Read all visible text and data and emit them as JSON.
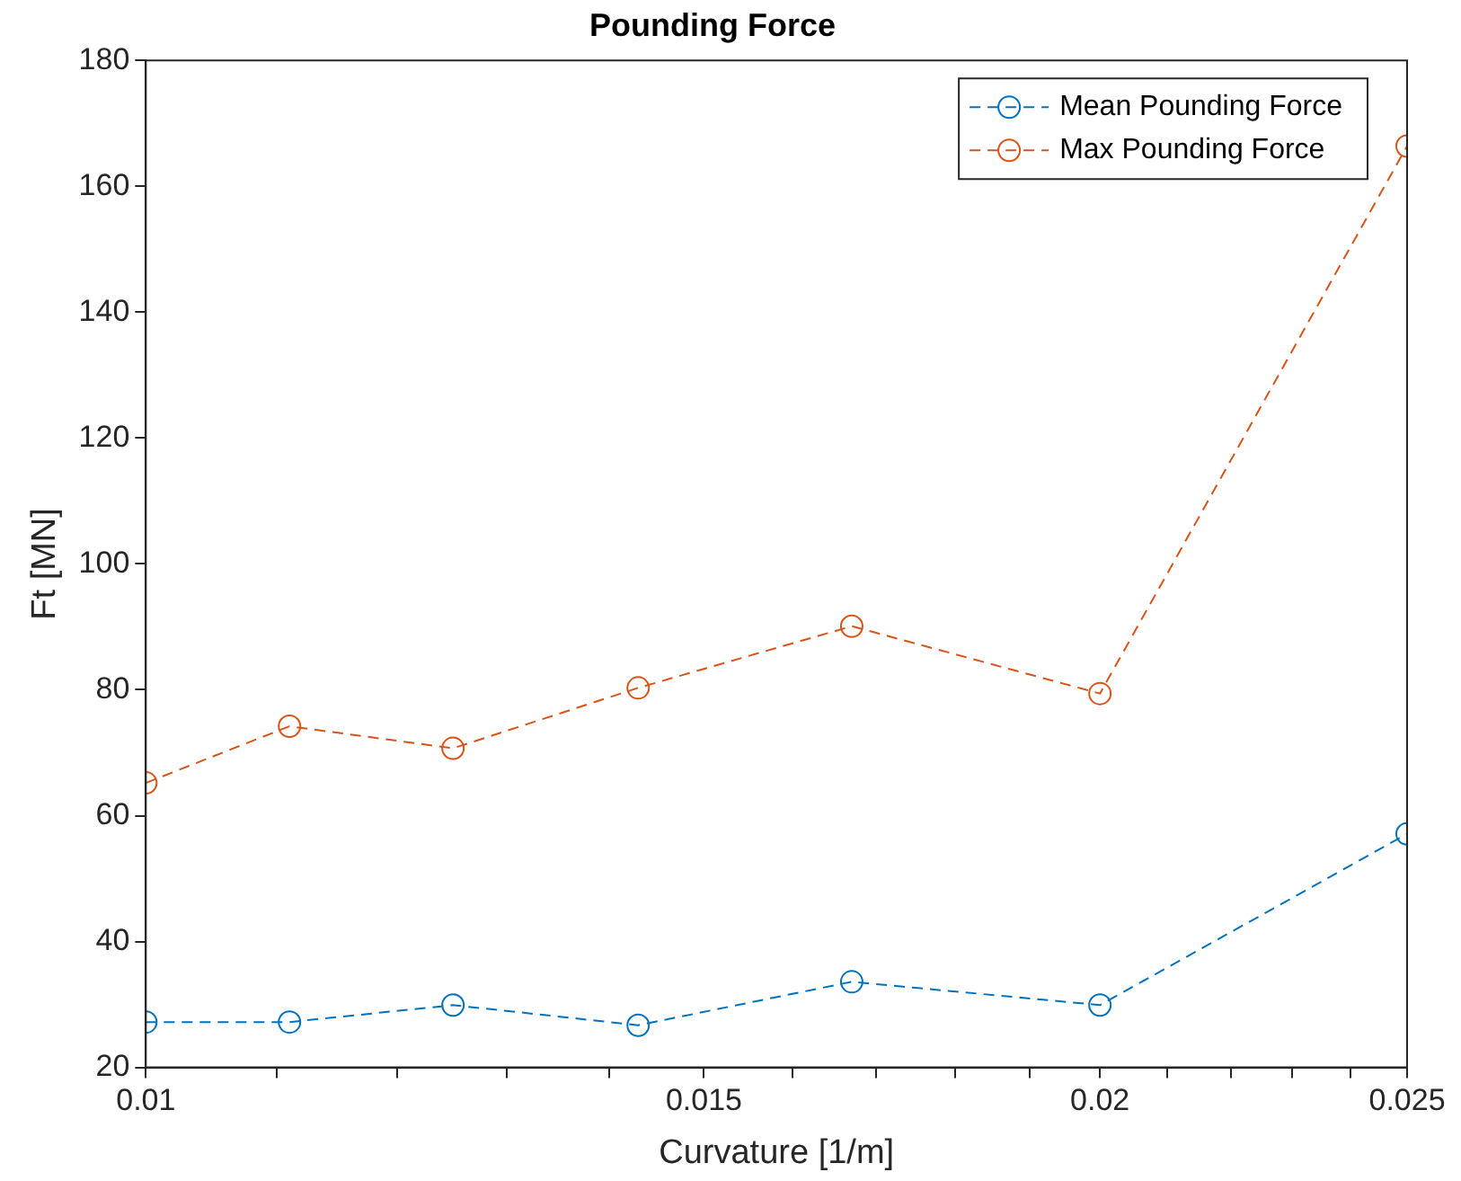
{
  "chart_data": {
    "type": "line",
    "title": "Pounding Force",
    "xlabel": "Curvature [1/m]",
    "ylabel": "Ft [MN]",
    "x": [
      0.01,
      0.0111,
      0.0125,
      0.0143,
      0.0167,
      0.02,
      0.025
    ],
    "series": [
      {
        "name": "Mean Pounding Force",
        "color": "#0072bd",
        "values": [
          27.2,
          27.2,
          29.9,
          26.7,
          33.6,
          29.9,
          57.1
        ]
      },
      {
        "name": "Max Pounding Force",
        "color": "#d95319",
        "values": [
          65.2,
          74.2,
          70.7,
          80.3,
          90.1,
          79.4,
          166.4
        ]
      }
    ],
    "log": "x",
    "xlim": [
      0.01,
      0.025
    ],
    "xticks": [
      0.01,
      {
        "value": 0.011,
        "label": null
      },
      {
        "value": 0.012,
        "label": null
      },
      {
        "value": 0.013,
        "label": null
      },
      {
        "value": 0.014,
        "label": null
      },
      0.015,
      {
        "value": 0.016,
        "label": null
      },
      {
        "value": 0.017,
        "label": null
      },
      {
        "value": 0.018,
        "label": null
      },
      {
        "value": 0.019,
        "label": null
      },
      0.02,
      {
        "value": 0.021,
        "label": null
      },
      {
        "value": 0.022,
        "label": null
      },
      {
        "value": 0.023,
        "label": null
      },
      {
        "value": 0.024,
        "label": null
      },
      0.025
    ],
    "ylim": [
      20,
      180
    ],
    "yticks": [
      20,
      40,
      60,
      80,
      100,
      120,
      140,
      160,
      180
    ],
    "grid": false,
    "legend": "top right",
    "marker": "circle",
    "line_style": "dashed"
  }
}
